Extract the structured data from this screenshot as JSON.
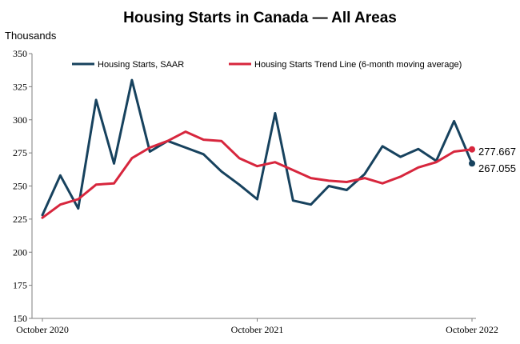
{
  "chart_data": {
    "type": "line",
    "title": "Housing Starts in Canada — All Areas",
    "ylabel": "Thousands",
    "xlabel": "",
    "ylim": [
      150,
      350
    ],
    "yticks": [
      150,
      175,
      200,
      225,
      250,
      275,
      300,
      325,
      350
    ],
    "x_tick_labels": [
      {
        "index": 0,
        "label": "October 2020"
      },
      {
        "index": 12,
        "label": "October 2021"
      },
      {
        "index": 24,
        "label": "October 2022"
      }
    ],
    "grid": false,
    "legend_position": "top",
    "colors": {
      "starts": "#17425E",
      "trend": "#D7263D"
    },
    "series": [
      {
        "name": "Housing Starts, SAAR",
        "values": [
          228,
          258,
          233,
          315,
          267,
          330,
          276,
          284,
          279,
          274,
          261,
          251,
          240,
          305,
          239,
          236,
          250,
          247,
          259,
          280,
          272,
          278,
          269,
          299,
          267.055
        ]
      },
      {
        "name": "Housing Starts Trend Line (6-month moving average)",
        "values": [
          226,
          236,
          240,
          251,
          252,
          271,
          279,
          284,
          291,
          285,
          284,
          271,
          265,
          268,
          262,
          256,
          254,
          253,
          256,
          252,
          257,
          264,
          268,
          276,
          277.667
        ]
      }
    ],
    "end_labels": [
      "277.667",
      "267.055"
    ]
  }
}
